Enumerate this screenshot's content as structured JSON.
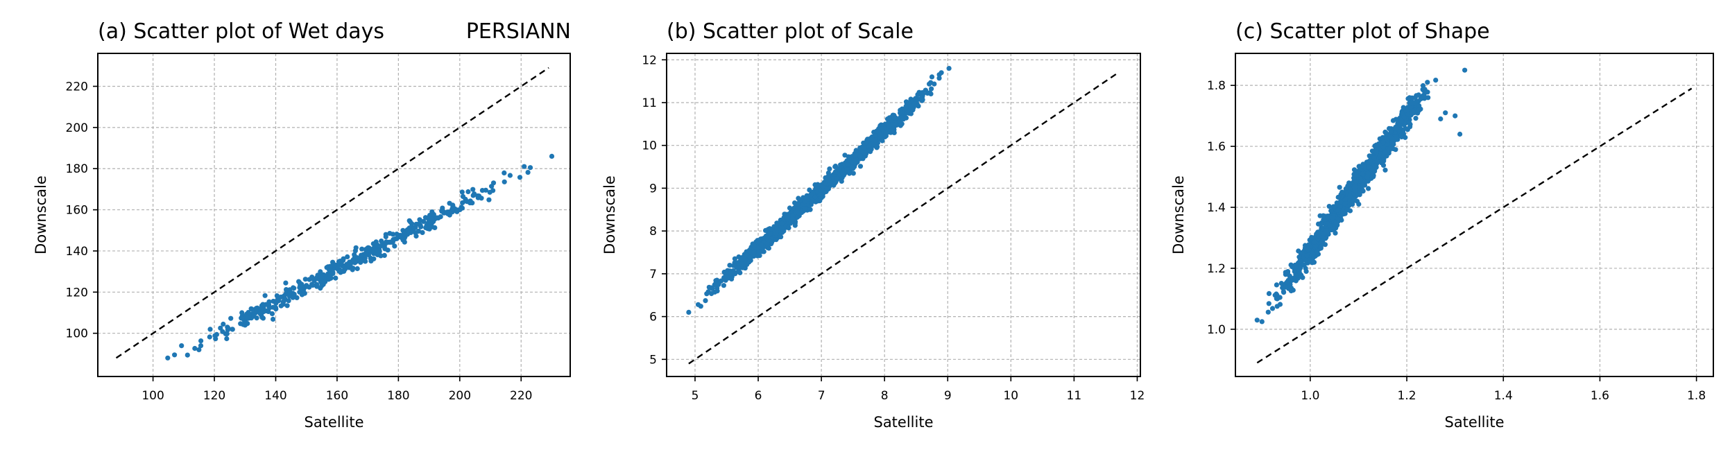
{
  "figure_label": "PERSIANN",
  "colors": {
    "points": "#1f77b4",
    "reference_line": "#000000",
    "grid": "#b0b0b0"
  },
  "chart_data": [
    {
      "type": "scatter",
      "title": "(a) Scatter plot of Wet days",
      "xlabel": "Satellite",
      "ylabel": "Downscale",
      "xlim": [
        82,
        236
      ],
      "ylim": [
        79,
        236
      ],
      "xticks": [
        100,
        120,
        140,
        160,
        180,
        200,
        220
      ],
      "yticks": [
        100,
        120,
        140,
        160,
        180,
        200,
        220
      ],
      "grid": true,
      "reference_line": {
        "style": "dashed",
        "from": [
          88,
          88
        ],
        "to": [
          229,
          229
        ]
      },
      "series": [
        {
          "points_model": "linear",
          "x_range": [
            104,
            230
          ],
          "slope": 0.78,
          "intercept": 6,
          "noise": 2.2,
          "count": 420
        }
      ],
      "outliers": [
        [
          104.8,
          88
        ],
        [
          107,
          89.5
        ],
        [
          230,
          186
        ],
        [
          221,
          181
        ],
        [
          223,
          180.5
        ]
      ]
    },
    {
      "type": "scatter",
      "title": "(b) Scatter plot of Scale",
      "xlabel": "Satellite",
      "ylabel": "Downscale",
      "xlim": [
        4.55,
        12.05
      ],
      "ylim": [
        4.6,
        12.15
      ],
      "xticks": [
        5,
        6,
        7,
        8,
        9,
        10,
        11,
        12
      ],
      "yticks": [
        5,
        6,
        7,
        8,
        9,
        10,
        11,
        12
      ],
      "grid": true,
      "reference_line": {
        "style": "dashed",
        "from": [
          4.9,
          4.9
        ],
        "to": [
          11.7,
          11.7
        ]
      },
      "series": [
        {
          "points_model": "linear",
          "x_range": [
            4.9,
            9.05
          ],
          "slope": 1.36,
          "intercept": -0.55,
          "noise": 0.09,
          "count": 1400
        }
      ],
      "outliers": [
        [
          4.9,
          6.1
        ],
        [
          8.75,
          11.6
        ],
        [
          8.9,
          11.7
        ],
        [
          9.02,
          11.8
        ]
      ]
    },
    {
      "type": "scatter",
      "title": "(c) Scatter plot of Shape",
      "xlabel": "Satellite",
      "ylabel": "Downscale",
      "xlim": [
        0.845,
        1.835
      ],
      "ylim": [
        0.845,
        1.905
      ],
      "xticks": [
        1.0,
        1.2,
        1.4,
        1.6,
        1.8
      ],
      "yticks": [
        1.0,
        1.2,
        1.4,
        1.6,
        1.8
      ],
      "grid": true,
      "reference_line": {
        "style": "dashed",
        "from": [
          0.89,
          0.89
        ],
        "to": [
          1.79,
          1.79
        ]
      },
      "series": [
        {
          "points_model": "linear",
          "x_range": [
            0.89,
            1.28
          ],
          "slope": 2.18,
          "intercept": -0.92,
          "noise": 0.022,
          "count": 1100
        }
      ],
      "outliers": [
        [
          1.32,
          1.85
        ],
        [
          1.3,
          1.7
        ],
        [
          1.31,
          1.64
        ],
        [
          1.28,
          1.71
        ],
        [
          1.27,
          1.69
        ],
        [
          0.89,
          1.03
        ],
        [
          0.9,
          1.025
        ]
      ]
    }
  ]
}
